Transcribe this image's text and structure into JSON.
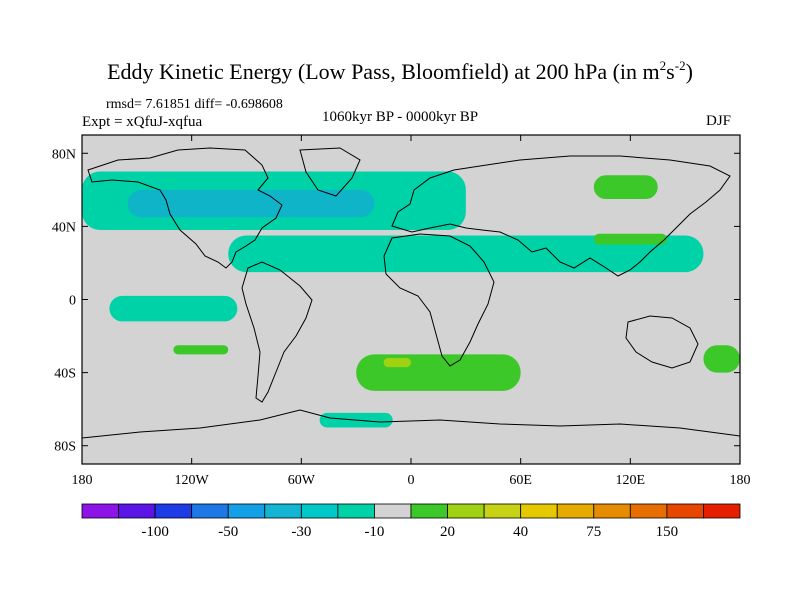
{
  "title": {
    "main": "Eddy Kinetic Energy (Low Pass, Bloomfield) at 200 hPa (in m",
    "sup1": "2",
    "mid": "s",
    "sup2": "-2",
    "end": ")"
  },
  "stats": "rmsd= 7.61851 diff= -0.698608",
  "experiment": "Expt = xQfuJ-xqfua",
  "period": "1060kyr BP - 0000kyr BP",
  "season": "DJF",
  "map": {
    "projection": "cylindrical-equidistant",
    "lon_range": [
      -180,
      180
    ],
    "lat_range": [
      -90,
      90
    ],
    "background_color": "#d3d3d3",
    "x_ticks": [
      {
        "lon": -180,
        "label": "180"
      },
      {
        "lon": -120,
        "label": "120W"
      },
      {
        "lon": -60,
        "label": "60W"
      },
      {
        "lon": 0,
        "label": "0"
      },
      {
        "lon": 60,
        "label": "60E"
      },
      {
        "lon": 120,
        "label": "120E"
      },
      {
        "lon": 180,
        "label": "180"
      }
    ],
    "y_ticks": [
      {
        "lat": 80,
        "label": "80N"
      },
      {
        "lat": 40,
        "label": "40N"
      },
      {
        "lat": 0,
        "label": "0"
      },
      {
        "lat": -40,
        "label": "40S"
      },
      {
        "lat": -80,
        "label": "80S"
      }
    ]
  },
  "chart_data": {
    "type": "heatmap",
    "variable": "eddy kinetic energy difference",
    "units": "m2 s-2",
    "contour_regions": [
      {
        "level": "-10 to -30",
        "color": "#00d2a8",
        "lon": [
          -180,
          30
        ],
        "lat": [
          38,
          70
        ]
      },
      {
        "level": "-10 to -30",
        "color": "#00d2a8",
        "lon": [
          -100,
          160
        ],
        "lat": [
          15,
          35
        ]
      },
      {
        "level": "-10 to -30",
        "color": "#00d2a8",
        "lon": [
          -165,
          -95
        ],
        "lat": [
          -12,
          2
        ]
      },
      {
        "level": "-30 to -50",
        "color": "#10b4c8",
        "lon": [
          -155,
          -20
        ],
        "lat": [
          45,
          60
        ]
      },
      {
        "level": "-10 to -30",
        "color": "#00d2a8",
        "lon": [
          -50,
          -10
        ],
        "lat": [
          -70,
          -62
        ]
      },
      {
        "level": "10 to 20",
        "color": "#3cc828",
        "lon": [
          -30,
          60
        ],
        "lat": [
          -50,
          -30
        ]
      },
      {
        "level": "20 to 30",
        "color": "#a0d214",
        "lon": [
          -15,
          0
        ],
        "lat": [
          -37,
          -32
        ]
      },
      {
        "level": "10 to 20",
        "color": "#3cc828",
        "lon": [
          -130,
          -100
        ],
        "lat": [
          -30,
          -25
        ]
      },
      {
        "level": "10 to 20",
        "color": "#3cc828",
        "lon": [
          100,
          140
        ],
        "lat": [
          30,
          36
        ]
      },
      {
        "level": "10 to 20",
        "color": "#3cc828",
        "lon": [
          100,
          135
        ],
        "lat": [
          55,
          68
        ]
      },
      {
        "level": "10 to 20",
        "color": "#3cc828",
        "lon": [
          160,
          180
        ],
        "lat": [
          -40,
          -25
        ]
      }
    ]
  },
  "colorbar": {
    "colors": [
      "#8c14e6",
      "#5a14e6",
      "#1e3ce6",
      "#1e78e6",
      "#14a0e6",
      "#14b4d2",
      "#00c8c8",
      "#00d2a8",
      "#d3d3d3",
      "#3cc828",
      "#a0d214",
      "#c8d214",
      "#e6c800",
      "#e6aa00",
      "#e68c00",
      "#e66e00",
      "#e64600",
      "#e61e00"
    ],
    "labels": [
      {
        "after": 2,
        "text": "-100"
      },
      {
        "after": 4,
        "text": "-50"
      },
      {
        "after": 6,
        "text": "-30"
      },
      {
        "after": 8,
        "text": "-10"
      },
      {
        "after": 10,
        "text": "20"
      },
      {
        "after": 12,
        "text": "40"
      },
      {
        "after": 14,
        "text": "75"
      },
      {
        "after": 16,
        "text": "150"
      }
    ]
  }
}
